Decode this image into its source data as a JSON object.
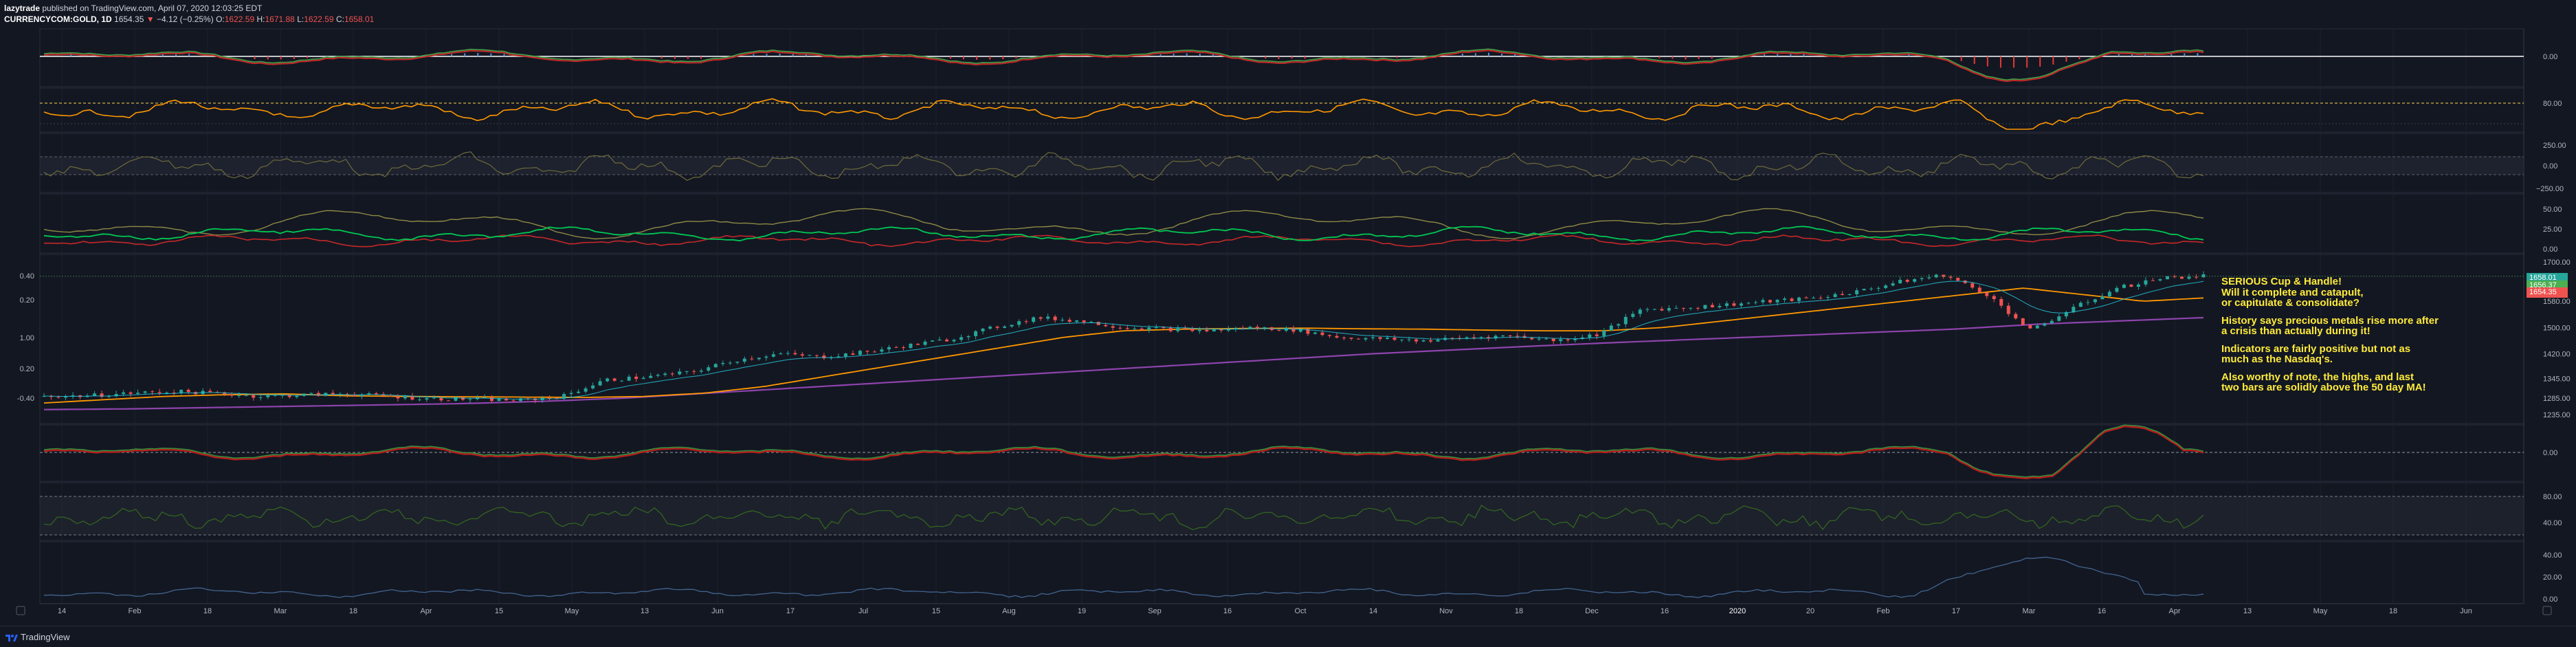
{
  "header": {
    "author": "lazytrade",
    "published": "published on TradingView.com, April 07, 2020 12:03:25 EDT",
    "symbol": "CURRENCYCOM:GOLD, 1D",
    "last": "1654.35",
    "arrow": "▼",
    "change": "−4.12 (−0.25%)",
    "o_label": "O:",
    "o_val": "1622.59",
    "h_label": "H:",
    "h_val": "1671.88",
    "l_label": "L:",
    "l_val": "1622.59",
    "c_label": "C:",
    "c_val": "1658.01"
  },
  "annotation": {
    "lines": [
      "SERIOUS Cup & Handle!",
      "Will it complete and catapult,",
      "or capitulate & consolidate?",
      "",
      "History says precious metals rise more after",
      "a crisis than actually during it!",
      "",
      "Indicators are fairly positive but not as",
      "much as the Nasdaq's.",
      "",
      "Also worthy of note, the highs, and last",
      "two bars are solidly above the 50 day MA!"
    ]
  },
  "price_tags": [
    {
      "text": "1658.01",
      "color": "#26a69a"
    },
    {
      "text": "1656.37",
      "color": "#4caf50"
    },
    {
      "text": "1654.35",
      "color": "#ef5350"
    }
  ],
  "footer": {
    "brand": "TradingView"
  },
  "colors": {
    "bg": "#131722",
    "grid": "#1e222d",
    "axis_text": "#b2b5be",
    "up": "#26a69a",
    "down": "#ef5350",
    "orange": "#ff9800",
    "purple": "#9c27b0",
    "green": "#4caf50",
    "red": "#e53935",
    "olive": "#8d8a45",
    "blue": "#5b8fd9"
  },
  "chart_data": {
    "type": "line",
    "symbol": "CURRENCYCOM:GOLD",
    "interval": "1D",
    "x_tick_labels": [
      "14",
      "Feb",
      "18",
      "Mar",
      "18",
      "Apr",
      "15",
      "May",
      "13",
      "Jun",
      "17",
      "Jul",
      "15",
      "Aug",
      "19",
      "Sep",
      "16",
      "Oct",
      "14",
      "Nov",
      "18",
      "Dec",
      "16",
      "2020",
      "20",
      "Feb",
      "17",
      "Mar",
      "16",
      "Apr",
      "13",
      "May",
      "18",
      "Jun"
    ],
    "main_price_axis": [
      "1700.00",
      "1580.00",
      "1500.00",
      "1420.00",
      "1345.00",
      "1285.00",
      "1235.00"
    ],
    "main_left_axis": [
      "0.40",
      "0.20",
      "1.00",
      "0.20",
      "-0.40"
    ],
    "price_series_approx": [
      1290,
      1292,
      1300,
      1305,
      1300,
      1290,
      1295,
      1298,
      1290,
      1283,
      1282,
      1278,
      1290,
      1340,
      1350,
      1365,
      1400,
      1420,
      1410,
      1425,
      1445,
      1465,
      1500,
      1530,
      1520,
      1500,
      1495,
      1490,
      1500,
      1492,
      1470,
      1465,
      1460,
      1470,
      1475,
      1460,
      1480,
      1555,
      1560,
      1570,
      1580,
      1590,
      1610,
      1640,
      1660,
      1600,
      1490,
      1560,
      1620,
      1650,
      1658
    ],
    "ma_orange_approx": [
      1270,
      1280,
      1290,
      1295,
      1298,
      1292,
      1290,
      1289,
      1288,
      1287,
      1290,
      1300,
      1320,
      1350,
      1380,
      1410,
      1440,
      1470,
      1490,
      1495,
      1497,
      1498,
      1496,
      1495,
      1492,
      1490,
      1490,
      1500,
      1520,
      1540,
      1560,
      1580,
      1600,
      1620,
      1600,
      1580,
      1590
    ],
    "ma_purple_approx": [
      1250,
      1252,
      1256,
      1260,
      1264,
      1268,
      1275,
      1285,
      1300,
      1315,
      1330,
      1345,
      1360,
      1375,
      1390,
      1405,
      1420,
      1432,
      1444,
      1455,
      1465,
      1475,
      1485,
      1495,
      1510,
      1520,
      1530
    ],
    "subpanel_axes": [
      {
        "panel": "osc1",
        "labels": [
          "0.00"
        ]
      },
      {
        "panel": "rsi",
        "labels": [
          "80.00"
        ]
      },
      {
        "panel": "cci",
        "labels": [
          "250.00",
          "0.00",
          "−250.00"
        ]
      },
      {
        "panel": "adx",
        "labels": [
          "50.00",
          "25.00",
          "0.00"
        ]
      },
      {
        "panel": "osc2",
        "labels": [
          "0.00"
        ]
      },
      {
        "panel": "stoch",
        "labels": [
          "80.00",
          "40.00"
        ]
      },
      {
        "panel": "vol",
        "labels": [
          "40.00",
          "20.00",
          "0.00"
        ]
      }
    ]
  }
}
